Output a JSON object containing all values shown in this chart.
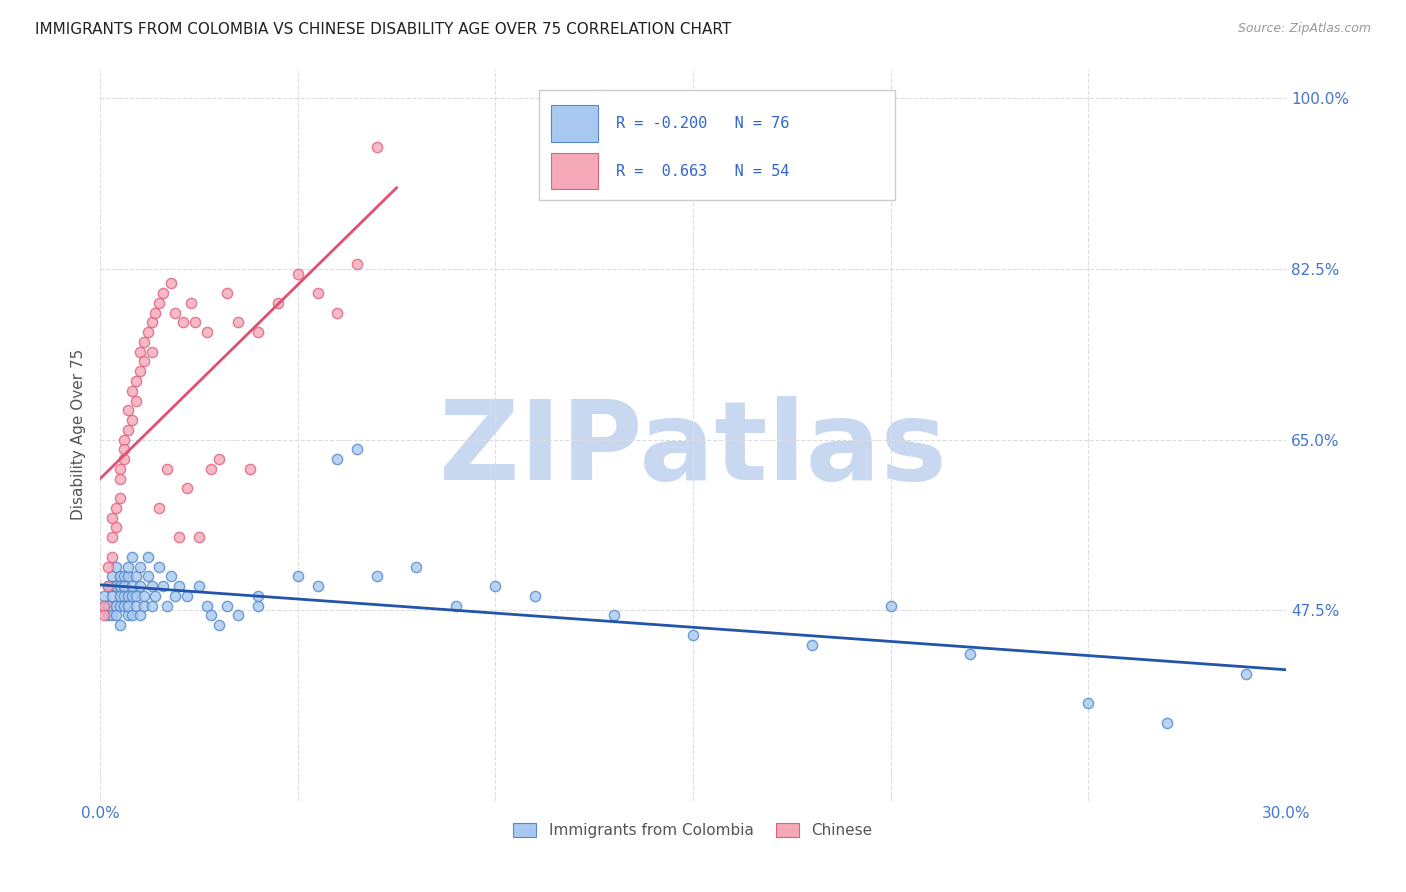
{
  "title": "IMMIGRANTS FROM COLOMBIA VS CHINESE DISABILITY AGE OVER 75 CORRELATION CHART",
  "source": "Source: ZipAtlas.com",
  "ylabel": "Disability Age Over 75",
  "xlim": [
    0.0,
    0.3
  ],
  "ylim": [
    0.28,
    1.03
  ],
  "xticks": [
    0.0,
    0.05,
    0.1,
    0.15,
    0.2,
    0.25,
    0.3
  ],
  "xticklabels": [
    "0.0%",
    "",
    "",
    "",
    "",
    "",
    "30.0%"
  ],
  "yticks": [
    0.475,
    0.65,
    0.825,
    1.0
  ],
  "yticklabels": [
    "47.5%",
    "65.0%",
    "82.5%",
    "100.0%"
  ],
  "blue_R": -0.2,
  "blue_N": 76,
  "pink_R": 0.663,
  "pink_N": 54,
  "blue_color": "#a8c8f0",
  "pink_color": "#f4a8b8",
  "blue_edge_color": "#5588cc",
  "pink_edge_color": "#e06080",
  "blue_line_color": "#2255aa",
  "pink_line_color": "#e05070",
  "watermark_color": "#c8d8f0",
  "legend_label1": "Immigrants from Colombia",
  "legend_label2": "Chinese",
  "blue_scatter_x": [
    0.001,
    0.001,
    0.002,
    0.002,
    0.002,
    0.003,
    0.003,
    0.003,
    0.003,
    0.004,
    0.004,
    0.004,
    0.004,
    0.005,
    0.005,
    0.005,
    0.005,
    0.005,
    0.006,
    0.006,
    0.006,
    0.006,
    0.007,
    0.007,
    0.007,
    0.007,
    0.007,
    0.008,
    0.008,
    0.008,
    0.008,
    0.009,
    0.009,
    0.009,
    0.01,
    0.01,
    0.01,
    0.011,
    0.011,
    0.012,
    0.012,
    0.013,
    0.013,
    0.014,
    0.015,
    0.016,
    0.017,
    0.018,
    0.019,
    0.02,
    0.022,
    0.025,
    0.027,
    0.028,
    0.03,
    0.032,
    0.035,
    0.04,
    0.04,
    0.05,
    0.055,
    0.06,
    0.065,
    0.07,
    0.08,
    0.09,
    0.1,
    0.11,
    0.13,
    0.15,
    0.18,
    0.2,
    0.22,
    0.25,
    0.27,
    0.29
  ],
  "blue_scatter_y": [
    0.49,
    0.48,
    0.5,
    0.47,
    0.48,
    0.5,
    0.49,
    0.51,
    0.47,
    0.5,
    0.48,
    0.52,
    0.47,
    0.49,
    0.51,
    0.48,
    0.5,
    0.46,
    0.49,
    0.51,
    0.48,
    0.5,
    0.49,
    0.51,
    0.47,
    0.52,
    0.48,
    0.5,
    0.49,
    0.53,
    0.47,
    0.51,
    0.49,
    0.48,
    0.52,
    0.5,
    0.47,
    0.49,
    0.48,
    0.53,
    0.51,
    0.48,
    0.5,
    0.49,
    0.52,
    0.5,
    0.48,
    0.51,
    0.49,
    0.5,
    0.49,
    0.5,
    0.48,
    0.47,
    0.46,
    0.48,
    0.47,
    0.48,
    0.49,
    0.51,
    0.5,
    0.63,
    0.64,
    0.51,
    0.52,
    0.48,
    0.5,
    0.49,
    0.47,
    0.45,
    0.44,
    0.48,
    0.43,
    0.38,
    0.36,
    0.41
  ],
  "pink_scatter_x": [
    0.001,
    0.001,
    0.002,
    0.002,
    0.003,
    0.003,
    0.003,
    0.004,
    0.004,
    0.005,
    0.005,
    0.005,
    0.006,
    0.006,
    0.006,
    0.007,
    0.007,
    0.008,
    0.008,
    0.009,
    0.009,
    0.01,
    0.01,
    0.011,
    0.011,
    0.012,
    0.013,
    0.013,
    0.014,
    0.015,
    0.015,
    0.016,
    0.017,
    0.018,
    0.019,
    0.02,
    0.021,
    0.022,
    0.023,
    0.024,
    0.025,
    0.027,
    0.028,
    0.03,
    0.032,
    0.035,
    0.038,
    0.04,
    0.045,
    0.05,
    0.055,
    0.06,
    0.065,
    0.07
  ],
  "pink_scatter_y": [
    0.48,
    0.47,
    0.5,
    0.52,
    0.53,
    0.55,
    0.57,
    0.56,
    0.58,
    0.59,
    0.62,
    0.61,
    0.63,
    0.65,
    0.64,
    0.66,
    0.68,
    0.67,
    0.7,
    0.69,
    0.71,
    0.72,
    0.74,
    0.73,
    0.75,
    0.76,
    0.74,
    0.77,
    0.78,
    0.79,
    0.58,
    0.8,
    0.62,
    0.81,
    0.78,
    0.55,
    0.77,
    0.6,
    0.79,
    0.77,
    0.55,
    0.76,
    0.62,
    0.63,
    0.8,
    0.77,
    0.62,
    0.76,
    0.79,
    0.82,
    0.8,
    0.78,
    0.83,
    0.95
  ]
}
